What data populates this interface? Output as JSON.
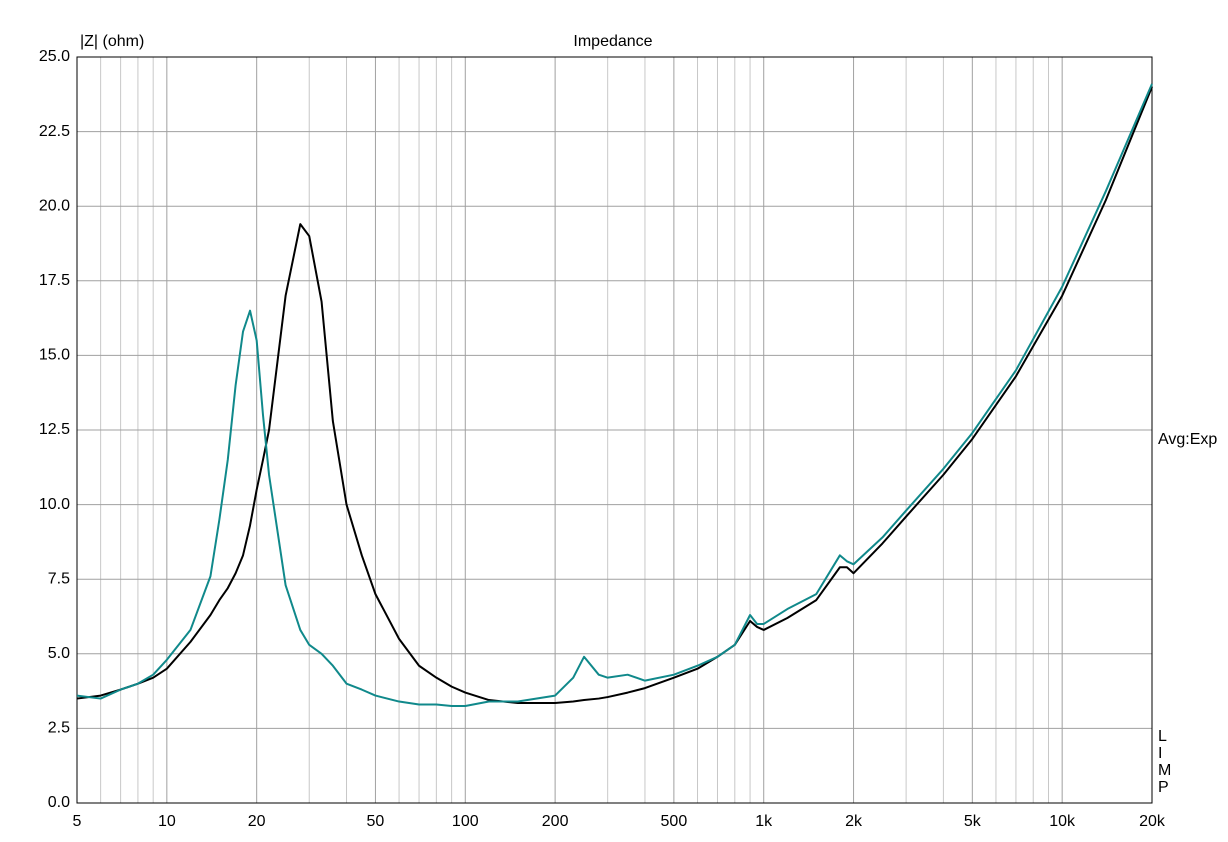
{
  "chart_data": {
    "type": "line",
    "title": "Impedance",
    "y_label": "|Z| (ohm)",
    "annotations": [
      "Avg:Exp"
    ],
    "side_labels": [
      "L",
      "I",
      "M",
      "P"
    ],
    "xscale": "log",
    "grid": true,
    "xlim": [
      5,
      20000
    ],
    "ylim": [
      0,
      25
    ],
    "xticks": [
      5,
      10,
      20,
      50,
      100,
      200,
      500,
      {
        "value": 1000,
        "label": "1k"
      },
      {
        "value": 2000,
        "label": "2k"
      },
      {
        "value": 5000,
        "label": "5k"
      },
      {
        "value": 10000,
        "label": "10k"
      },
      {
        "value": 20000,
        "label": "20k"
      }
    ],
    "minor_xticks": [
      6,
      7,
      8,
      9,
      30,
      40,
      60,
      70,
      80,
      90,
      300,
      400,
      600,
      700,
      800,
      900,
      3000,
      4000,
      6000,
      7000,
      8000,
      9000
    ],
    "yticks": [
      {
        "value": 0,
        "label": "0.0"
      },
      2.5,
      {
        "value": 5,
        "label": "5.0"
      },
      7.5,
      {
        "value": 10,
        "label": "10.0"
      },
      12.5,
      {
        "value": 15,
        "label": "15.0"
      },
      17.5,
      {
        "value": 20,
        "label": "20.0"
      },
      22.5,
      {
        "value": 25,
        "label": "25.0"
      }
    ],
    "x": [
      5,
      6,
      7,
      8,
      9,
      10,
      12,
      14,
      15,
      16,
      17,
      18,
      19,
      20,
      21,
      22,
      25,
      28,
      30,
      33,
      36,
      40,
      45,
      50,
      60,
      70,
      80,
      90,
      100,
      120,
      150,
      200,
      230,
      250,
      280,
      300,
      350,
      400,
      500,
      600,
      700,
      800,
      900,
      950,
      1000,
      1200,
      1500,
      1800,
      1900,
      2000,
      2500,
      3000,
      4000,
      5000,
      7000,
      10000,
      14000,
      20000
    ],
    "series": [
      {
        "color": "#000000",
        "values": [
          3.5,
          3.6,
          3.8,
          4.0,
          4.2,
          4.5,
          5.4,
          6.3,
          6.8,
          7.2,
          7.7,
          8.3,
          9.3,
          10.5,
          11.5,
          12.5,
          17.0,
          19.4,
          19.0,
          16.8,
          12.8,
          10.0,
          8.3,
          7.0,
          5.5,
          4.6,
          4.2,
          3.9,
          3.7,
          3.45,
          3.35,
          3.35,
          3.4,
          3.45,
          3.5,
          3.55,
          3.7,
          3.85,
          4.2,
          4.5,
          4.9,
          5.3,
          6.1,
          5.9,
          5.8,
          6.2,
          6.8,
          7.9,
          7.9,
          7.7,
          8.7,
          9.6,
          11.0,
          12.2,
          14.3,
          17.0,
          20.2,
          24.0
        ]
      },
      {
        "color": "#10898b",
        "values": [
          3.6,
          3.5,
          3.8,
          4.0,
          4.3,
          4.8,
          5.8,
          7.6,
          9.5,
          11.5,
          14.0,
          15.8,
          16.5,
          15.5,
          13.0,
          11.0,
          7.3,
          5.8,
          5.3,
          5.0,
          4.6,
          4.0,
          3.8,
          3.6,
          3.4,
          3.3,
          3.3,
          3.25,
          3.25,
          3.4,
          3.4,
          3.6,
          4.2,
          4.9,
          4.3,
          4.2,
          4.3,
          4.1,
          4.3,
          4.6,
          4.9,
          5.3,
          6.3,
          6.0,
          6.0,
          6.5,
          7.0,
          8.3,
          8.1,
          8.0,
          8.9,
          9.8,
          11.2,
          12.4,
          14.5,
          17.3,
          20.5,
          24.1
        ]
      }
    ]
  }
}
